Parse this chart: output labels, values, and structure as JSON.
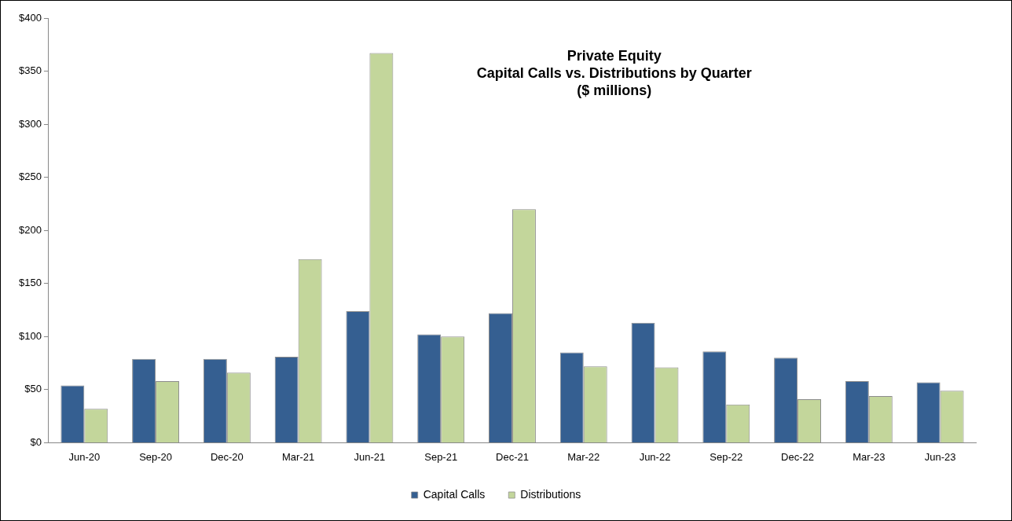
{
  "chart_data": {
    "type": "bar",
    "title": "Private Equity\nCapital Calls vs. Distributions by Quarter\n($ millions)",
    "categories": [
      "Jun-20",
      "Sep-20",
      "Dec-20",
      "Mar-21",
      "Jun-21",
      "Sep-21",
      "Dec-21",
      "Mar-22",
      "Jun-22",
      "Sep-22",
      "Dec-22",
      "Mar-23",
      "Jun-23"
    ],
    "series": [
      {
        "name": "Capital Calls",
        "color": "#355f91",
        "values": [
          54,
          79,
          79,
          81,
          124,
          102,
          122,
          85,
          113,
          86,
          80,
          58,
          57
        ]
      },
      {
        "name": "Distributions",
        "color": "#c3d69b",
        "values": [
          32,
          58,
          66,
          173,
          367,
          100,
          220,
          72,
          71,
          36,
          41,
          44,
          49
        ]
      }
    ],
    "ylim": [
      0,
      400
    ],
    "yticks": [
      {
        "value": 0,
        "label": "$0"
      },
      {
        "value": 50,
        "label": "$50"
      },
      {
        "value": 100,
        "label": "$100"
      },
      {
        "value": 150,
        "label": "$150"
      },
      {
        "value": 200,
        "label": "$200"
      },
      {
        "value": 250,
        "label": "$250"
      },
      {
        "value": 300,
        "label": "$300"
      },
      {
        "value": 350,
        "label": "$350"
      },
      {
        "value": 400,
        "label": "$400"
      }
    ],
    "grid": false,
    "legend": "bottom"
  }
}
